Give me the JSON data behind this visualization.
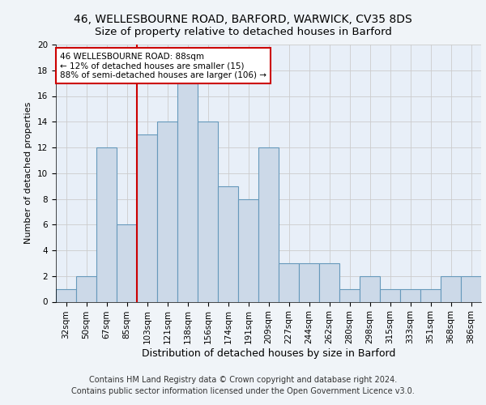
{
  "title1": "46, WELLESBOURNE ROAD, BARFORD, WARWICK, CV35 8DS",
  "title2": "Size of property relative to detached houses in Barford",
  "xlabel": "Distribution of detached houses by size in Barford",
  "ylabel": "Number of detached properties",
  "footnote1": "Contains HM Land Registry data © Crown copyright and database right 2024.",
  "footnote2": "Contains public sector information licensed under the Open Government Licence v3.0.",
  "bin_labels": [
    "32sqm",
    "50sqm",
    "67sqm",
    "85sqm",
    "103sqm",
    "121sqm",
    "138sqm",
    "156sqm",
    "174sqm",
    "191sqm",
    "209sqm",
    "227sqm",
    "244sqm",
    "262sqm",
    "280sqm",
    "298sqm",
    "315sqm",
    "333sqm",
    "351sqm",
    "368sqm",
    "386sqm"
  ],
  "bar_heights": [
    1,
    2,
    12,
    6,
    13,
    14,
    17,
    14,
    9,
    8,
    12,
    3,
    3,
    3,
    1,
    2,
    1,
    1,
    1,
    2,
    2
  ],
  "bar_color": "#ccd9e8",
  "bar_edge_color": "#6699bb",
  "red_line_x": 3.5,
  "annotation_line1": "46 WELLESBOURNE ROAD: 88sqm",
  "annotation_line2": "← 12% of detached houses are smaller (15)",
  "annotation_line3": "88% of semi-detached houses are larger (106) →",
  "annotation_box_color": "#ffffff",
  "annotation_border_color": "#cc0000",
  "ylim": [
    0,
    20
  ],
  "yticks": [
    0,
    2,
    4,
    6,
    8,
    10,
    12,
    14,
    16,
    18,
    20
  ],
  "fig_bg_color": "#f0f4f8",
  "ax_bg_color": "#e8eff8",
  "grid_color": "#cccccc",
  "title1_fontsize": 10,
  "title2_fontsize": 9.5,
  "xlabel_fontsize": 9,
  "ylabel_fontsize": 8,
  "tick_fontsize": 7.5,
  "annotation_fontsize": 7.5,
  "footnote_fontsize": 7
}
